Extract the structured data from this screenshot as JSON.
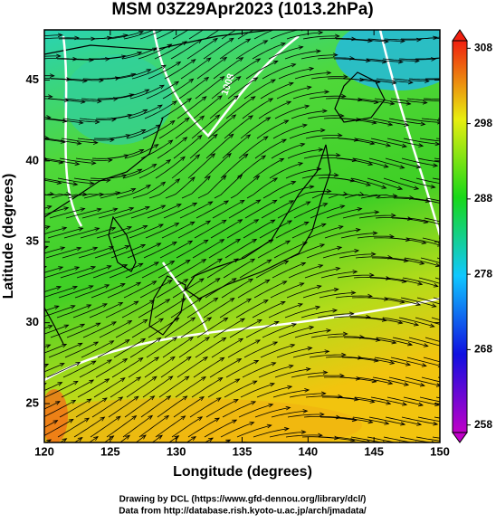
{
  "map": {
    "title": "MSM 03Z29Apr2023 (1013.2hPa)",
    "xlabel": "Longitude (degrees)",
    "ylabel": "Latitude  (degrees)",
    "xlim": [
      120,
      150
    ],
    "xticks": [
      120,
      125,
      130,
      135,
      140,
      145,
      150
    ],
    "ylim": [
      22.6,
      48.1
    ],
    "yticks": [
      25,
      30,
      35,
      40,
      45
    ],
    "contour_label": "1008",
    "colorbar": {
      "lim": [
        257,
        309
      ],
      "ticks": [
        258,
        268,
        278,
        288,
        298,
        308
      ]
    },
    "footer": [
      "Drawing by DCL (https://www.gfd-dennou.org/library/dcl/)",
      "Data from http://database.rish.kyoto-u.ac.jp/arch/jmadata/"
    ]
  }
}
